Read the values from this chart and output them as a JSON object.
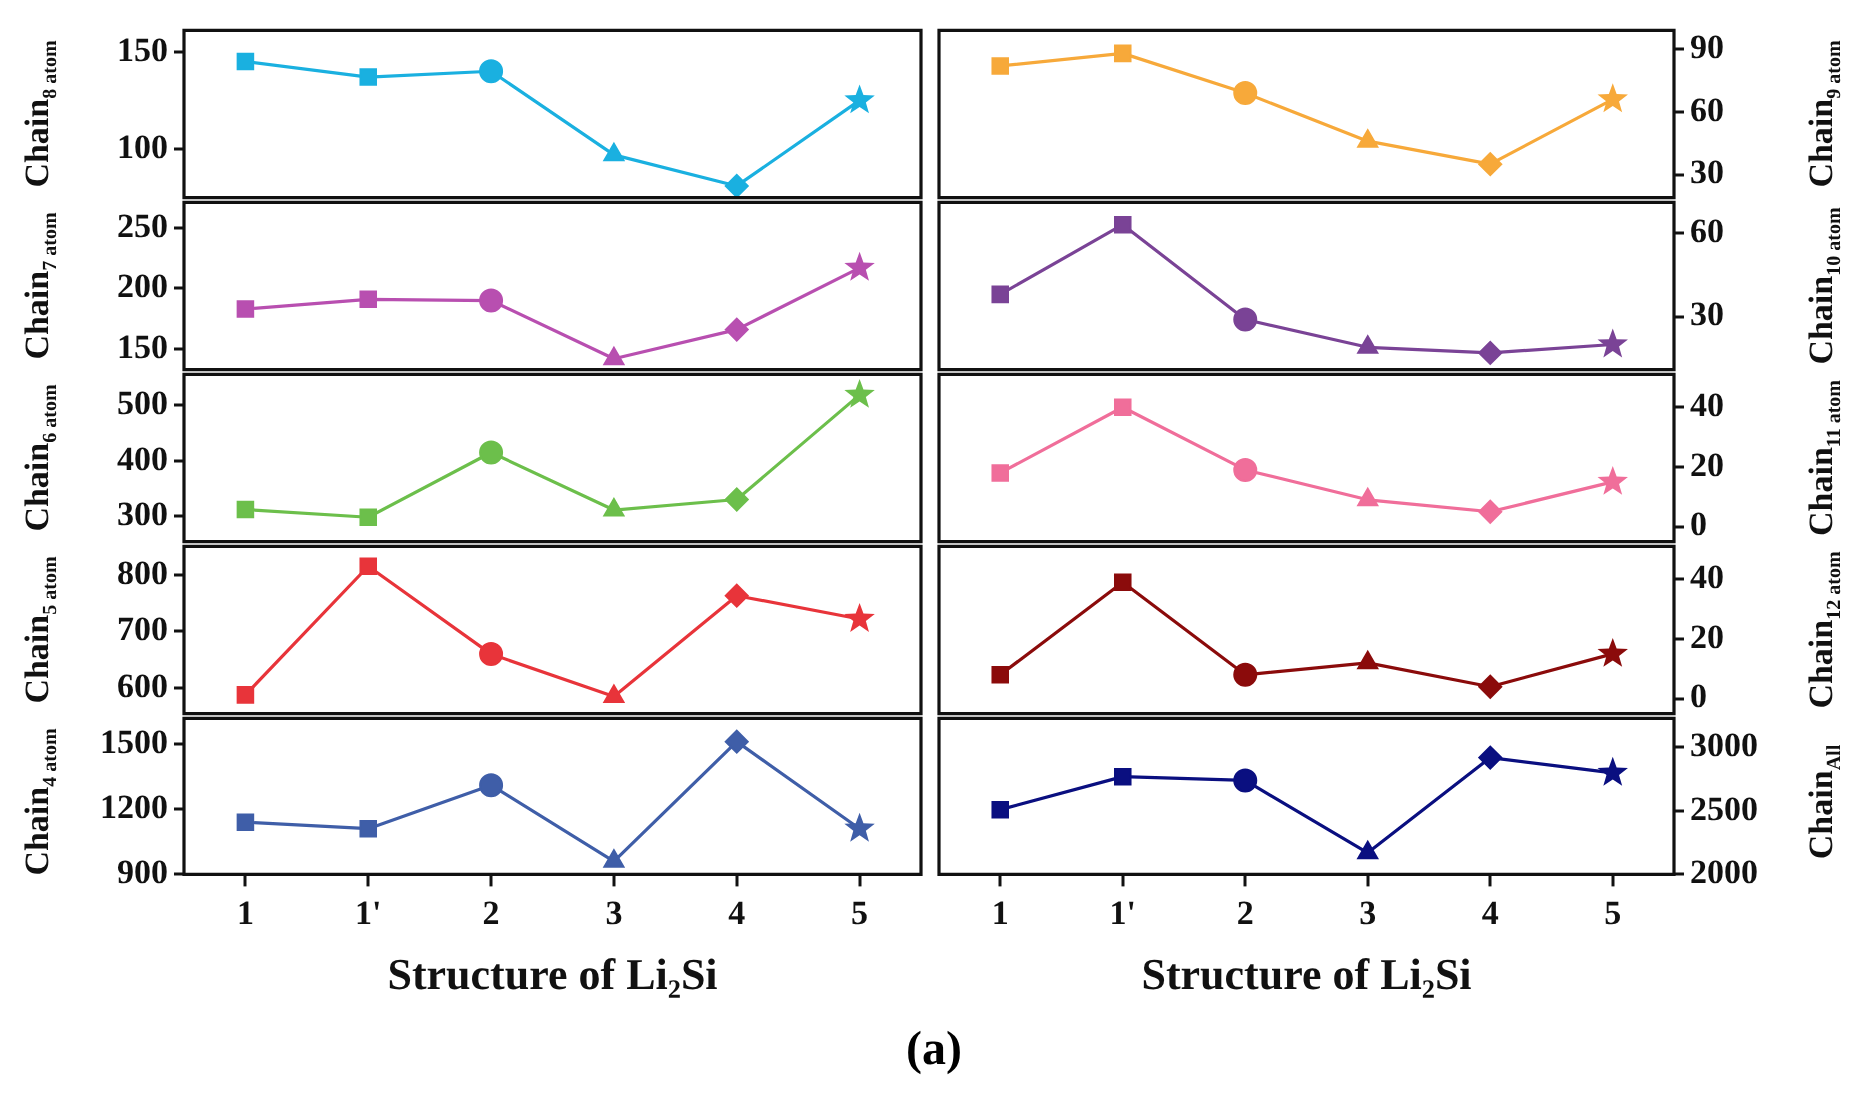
{
  "chart_data": [
    {
      "type": "line",
      "ylabel": "Chain$_{8 atom}$",
      "categories": [
        "1",
        "1'",
        "2",
        "3",
        "4",
        "5"
      ],
      "ylim": [
        75,
        161
      ],
      "yticks": [
        100,
        150
      ],
      "grid": false,
      "legend": false,
      "tick_labels": "y",
      "series": [
        {
          "color": "#1ab0e0",
          "marker": "none",
          "values": [
            145,
            137,
            140,
            97,
            81,
            125
          ]
        },
        {
          "type": "scatter",
          "color": "#1ab0e0",
          "marker": "square",
          "x": [
            "1"
          ],
          "values": [
            145
          ]
        },
        {
          "type": "scatter",
          "color": "#1ab0e0",
          "marker": "square",
          "x": [
            "1'"
          ],
          "values": [
            137
          ]
        },
        {
          "type": "scatter",
          "color": "#1ab0e0",
          "marker": "circle",
          "x": [
            "2"
          ],
          "values": [
            140
          ]
        },
        {
          "type": "scatter",
          "color": "#1ab0e0",
          "marker": "triangle",
          "x": [
            "3"
          ],
          "values": [
            97
          ]
        },
        {
          "type": "scatter",
          "color": "#1ab0e0",
          "marker": "diamond",
          "x": [
            "4"
          ],
          "values": [
            81
          ]
        },
        {
          "type": "scatter",
          "color": "#1ab0e0",
          "marker": "star",
          "x": [
            "5"
          ],
          "values": [
            125
          ]
        }
      ]
    },
    {
      "type": "line",
      "ylabel": "Chain$_{9 atom}$",
      "categories": [
        "1",
        "1'",
        "2",
        "3",
        "4",
        "5"
      ],
      "ylim": [
        19,
        99
      ],
      "yticks": [
        30,
        60,
        90
      ],
      "grid": false,
      "legend": false,
      "tick_labels": "y",
      "series": [
        {
          "color": "#f7a93a",
          "marker": "none",
          "values": [
            82,
            88,
            69,
            46,
            35,
            66
          ]
        },
        {
          "type": "scatter",
          "color": "#f7a93a",
          "marker": "square",
          "x": [
            "1"
          ],
          "values": [
            82
          ]
        },
        {
          "type": "scatter",
          "color": "#f7a93a",
          "marker": "square",
          "x": [
            "1'"
          ],
          "values": [
            88
          ]
        },
        {
          "type": "scatter",
          "color": "#f7a93a",
          "marker": "circle",
          "x": [
            "2"
          ],
          "values": [
            69
          ]
        },
        {
          "type": "scatter",
          "color": "#f7a93a",
          "marker": "triangle",
          "x": [
            "3"
          ],
          "values": [
            46
          ]
        },
        {
          "type": "scatter",
          "color": "#f7a93a",
          "marker": "diamond",
          "x": [
            "4"
          ],
          "values": [
            35
          ]
        },
        {
          "type": "scatter",
          "color": "#f7a93a",
          "marker": "star",
          "x": [
            "5"
          ],
          "values": [
            66
          ]
        }
      ]
    },
    {
      "type": "line",
      "ylabel": "Chain$_{7 atom}$",
      "categories": [
        "1",
        "1'",
        "2",
        "3",
        "4",
        "5"
      ],
      "ylim": [
        133,
        271
      ],
      "yticks": [
        150,
        200,
        250
      ],
      "grid": false,
      "legend": false,
      "tick_labels": "y",
      "series": [
        {
          "color": "#b84fb0",
          "marker": "none",
          "values": [
            183,
            191,
            190,
            142,
            166,
            217
          ]
        },
        {
          "type": "scatter",
          "color": "#b84fb0",
          "marker": "square",
          "x": [
            "1"
          ],
          "values": [
            183
          ]
        },
        {
          "type": "scatter",
          "color": "#b84fb0",
          "marker": "square",
          "x": [
            "1'"
          ],
          "values": [
            191
          ]
        },
        {
          "type": "scatter",
          "color": "#b84fb0",
          "marker": "circle",
          "x": [
            "2"
          ],
          "values": [
            190
          ]
        },
        {
          "type": "scatter",
          "color": "#b84fb0",
          "marker": "triangle",
          "x": [
            "3"
          ],
          "values": [
            142
          ]
        },
        {
          "type": "scatter",
          "color": "#b84fb0",
          "marker": "diamond",
          "x": [
            "4"
          ],
          "values": [
            166
          ]
        },
        {
          "type": "scatter",
          "color": "#b84fb0",
          "marker": "star",
          "x": [
            "5"
          ],
          "values": [
            217
          ]
        }
      ]
    },
    {
      "type": "line",
      "ylabel": "Chain$_{10 atom}$",
      "categories": [
        "1",
        "1'",
        "2",
        "3",
        "4",
        "5"
      ],
      "ylim": [
        11,
        71
      ],
      "yticks": [
        30,
        60
      ],
      "grid": false,
      "legend": false,
      "tick_labels": "y",
      "series": [
        {
          "color": "#7a4396",
          "marker": "none",
          "values": [
            38,
            63,
            29,
            19,
            17,
            20
          ]
        },
        {
          "type": "scatter",
          "color": "#7a4396",
          "marker": "square",
          "x": [
            "1"
          ],
          "values": [
            38
          ]
        },
        {
          "type": "scatter",
          "color": "#7a4396",
          "marker": "square",
          "x": [
            "1'"
          ],
          "values": [
            63
          ]
        },
        {
          "type": "scatter",
          "color": "#7a4396",
          "marker": "circle",
          "x": [
            "2"
          ],
          "values": [
            29
          ]
        },
        {
          "type": "scatter",
          "color": "#7a4396",
          "marker": "triangle",
          "x": [
            "3"
          ],
          "values": [
            19
          ]
        },
        {
          "type": "scatter",
          "color": "#7a4396",
          "marker": "diamond",
          "x": [
            "4"
          ],
          "values": [
            17
          ]
        },
        {
          "type": "scatter",
          "color": "#7a4396",
          "marker": "star",
          "x": [
            "5"
          ],
          "values": [
            20
          ]
        }
      ]
    },
    {
      "type": "line",
      "ylabel": "Chain$_{6 atom}$",
      "categories": [
        "1",
        "1'",
        "2",
        "3",
        "4",
        "5"
      ],
      "ylim": [
        254,
        556
      ],
      "yticks": [
        300,
        400,
        500
      ],
      "grid": false,
      "legend": false,
      "tick_labels": "y",
      "series": [
        {
          "color": "#6cbf4b",
          "marker": "none",
          "values": [
            312,
            298,
            415,
            311,
            330,
            519
          ]
        },
        {
          "type": "scatter",
          "color": "#6cbf4b",
          "marker": "square",
          "x": [
            "1"
          ],
          "values": [
            312
          ]
        },
        {
          "type": "scatter",
          "color": "#6cbf4b",
          "marker": "square",
          "x": [
            "1'"
          ],
          "values": [
            298
          ]
        },
        {
          "type": "scatter",
          "color": "#6cbf4b",
          "marker": "circle",
          "x": [
            "2"
          ],
          "values": [
            415
          ]
        },
        {
          "type": "scatter",
          "color": "#6cbf4b",
          "marker": "triangle",
          "x": [
            "3"
          ],
          "values": [
            311
          ]
        },
        {
          "type": "scatter",
          "color": "#6cbf4b",
          "marker": "diamond",
          "x": [
            "4"
          ],
          "values": [
            330
          ]
        },
        {
          "type": "scatter",
          "color": "#6cbf4b",
          "marker": "star",
          "x": [
            "5"
          ],
          "values": [
            519
          ]
        }
      ]
    },
    {
      "type": "line",
      "ylabel": "Chain$_{11 atom}$",
      "categories": [
        "1",
        "1'",
        "2",
        "3",
        "4",
        "5"
      ],
      "ylim": [
        -5,
        51
      ],
      "yticks": [
        0,
        20,
        40
      ],
      "grid": false,
      "legend": false,
      "tick_labels": "y",
      "series": [
        {
          "color": "#f06e9a",
          "marker": "none",
          "values": [
            18,
            40,
            19,
            9,
            5,
            15
          ]
        },
        {
          "type": "scatter",
          "color": "#f06e9a",
          "marker": "square",
          "x": [
            "1"
          ],
          "values": [
            18
          ]
        },
        {
          "type": "scatter",
          "color": "#f06e9a",
          "marker": "square",
          "x": [
            "1'"
          ],
          "values": [
            40
          ]
        },
        {
          "type": "scatter",
          "color": "#f06e9a",
          "marker": "circle",
          "x": [
            "2"
          ],
          "values": [
            19
          ]
        },
        {
          "type": "scatter",
          "color": "#f06e9a",
          "marker": "triangle",
          "x": [
            "3"
          ],
          "values": [
            9
          ]
        },
        {
          "type": "scatter",
          "color": "#f06e9a",
          "marker": "diamond",
          "x": [
            "4"
          ],
          "values": [
            5
          ]
        },
        {
          "type": "scatter",
          "color": "#f06e9a",
          "marker": "star",
          "x": [
            "5"
          ],
          "values": [
            15
          ]
        }
      ]
    },
    {
      "type": "line",
      "ylabel": "Chain$_{5 atom}$",
      "categories": [
        "1",
        "1'",
        "2",
        "3",
        "4",
        "5"
      ],
      "ylim": [
        555,
        850
      ],
      "yticks": [
        600,
        700,
        800
      ],
      "grid": false,
      "legend": false,
      "tick_labels": "y",
      "series": [
        {
          "color": "#e8343a",
          "marker": "none",
          "values": [
            588,
            815,
            660,
            585,
            763,
            722
          ]
        },
        {
          "type": "scatter",
          "color": "#e8343a",
          "marker": "square",
          "x": [
            "1"
          ],
          "values": [
            588
          ]
        },
        {
          "type": "scatter",
          "color": "#e8343a",
          "marker": "square",
          "x": [
            "1'"
          ],
          "values": [
            815
          ]
        },
        {
          "type": "scatter",
          "color": "#e8343a",
          "marker": "circle",
          "x": [
            "2"
          ],
          "values": [
            660
          ]
        },
        {
          "type": "scatter",
          "color": "#e8343a",
          "marker": "triangle",
          "x": [
            "3"
          ],
          "values": [
            585
          ]
        },
        {
          "type": "scatter",
          "color": "#e8343a",
          "marker": "diamond",
          "x": [
            "4"
          ],
          "values": [
            763
          ]
        },
        {
          "type": "scatter",
          "color": "#e8343a",
          "marker": "star",
          "x": [
            "5"
          ],
          "values": [
            722
          ]
        }
      ]
    },
    {
      "type": "line",
      "ylabel": "Chain$_{12 atom}$",
      "categories": [
        "1",
        "1'",
        "2",
        "3",
        "4",
        "5"
      ],
      "ylim": [
        -5,
        51
      ],
      "yticks": [
        0,
        20,
        40
      ],
      "grid": false,
      "legend": false,
      "tick_labels": "y",
      "series": [
        {
          "color": "#8b0b0b",
          "marker": "none",
          "values": [
            8,
            39,
            8,
            12,
            4,
            15
          ]
        },
        {
          "type": "scatter",
          "color": "#8b0b0b",
          "marker": "square",
          "x": [
            "1"
          ],
          "values": [
            8
          ]
        },
        {
          "type": "scatter",
          "color": "#8b0b0b",
          "marker": "square",
          "x": [
            "1'"
          ],
          "values": [
            39
          ]
        },
        {
          "type": "scatter",
          "color": "#8b0b0b",
          "marker": "circle",
          "x": [
            "2"
          ],
          "values": [
            8
          ]
        },
        {
          "type": "scatter",
          "color": "#8b0b0b",
          "marker": "triangle",
          "x": [
            "3"
          ],
          "values": [
            12
          ]
        },
        {
          "type": "scatter",
          "color": "#8b0b0b",
          "marker": "diamond",
          "x": [
            "4"
          ],
          "values": [
            4
          ]
        },
        {
          "type": "scatter",
          "color": "#8b0b0b",
          "marker": "star",
          "x": [
            "5"
          ],
          "values": [
            15
          ]
        }
      ]
    },
    {
      "type": "line",
      "xlabel": "Structure of Li₂Si",
      "ylabel": "Chain$_{4 atom}$",
      "annotations": [
        "(a)"
      ],
      "categories": [
        "1",
        "1'",
        "2",
        "3",
        "4",
        "5"
      ],
      "ylim": [
        900,
        1617
      ],
      "yticks": [
        900,
        1200,
        1500
      ],
      "grid": false,
      "legend": false,
      "series": [
        {
          "color": "#3f5ea8",
          "marker": "none",
          "values": [
            1140,
            1110,
            1310,
            960,
            1510,
            1110
          ]
        },
        {
          "type": "scatter",
          "color": "#3f5ea8",
          "marker": "square",
          "x": [
            "1"
          ],
          "values": [
            1140
          ]
        },
        {
          "type": "scatter",
          "color": "#3f5ea8",
          "marker": "square",
          "x": [
            "1'"
          ],
          "values": [
            1110
          ]
        },
        {
          "type": "scatter",
          "color": "#3f5ea8",
          "marker": "circle",
          "x": [
            "2"
          ],
          "values": [
            1310
          ]
        },
        {
          "type": "scatter",
          "color": "#3f5ea8",
          "marker": "triangle",
          "x": [
            "3"
          ],
          "values": [
            960
          ]
        },
        {
          "type": "scatter",
          "color": "#3f5ea8",
          "marker": "diamond",
          "x": [
            "4"
          ],
          "values": [
            1510
          ]
        },
        {
          "type": "scatter",
          "color": "#3f5ea8",
          "marker": "star",
          "x": [
            "5"
          ],
          "values": [
            1110
          ]
        }
      ]
    },
    {
      "type": "line",
      "xlabel": "Structure of Li₂Si",
      "ylabel": "Chain$_{All}$",
      "categories": [
        "1",
        "1'",
        "2",
        "3",
        "4",
        "5"
      ],
      "ylim": [
        2000,
        3229
      ],
      "yticks": [
        2000,
        2500,
        3000
      ],
      "grid": false,
      "legend": false,
      "series": [
        {
          "color": "#0a0f80",
          "marker": "none",
          "values": [
            2510,
            2770,
            2740,
            2170,
            2920,
            2800
          ]
        },
        {
          "type": "scatter",
          "color": "#0a0f80",
          "marker": "square",
          "x": [
            "1"
          ],
          "values": [
            2510
          ]
        },
        {
          "type": "scatter",
          "color": "#0a0f80",
          "marker": "square",
          "x": [
            "1'"
          ],
          "values": [
            2770
          ]
        },
        {
          "type": "scatter",
          "color": "#0a0f80",
          "marker": "circle",
          "x": [
            "2"
          ],
          "values": [
            2740
          ]
        },
        {
          "type": "scatter",
          "color": "#0a0f80",
          "marker": "triangle",
          "x": [
            "3"
          ],
          "values": [
            2170
          ]
        },
        {
          "type": "scatter",
          "color": "#0a0f80",
          "marker": "diamond",
          "x": [
            "4"
          ],
          "values": [
            2920
          ]
        },
        {
          "type": "scatter",
          "color": "#0a0f80",
          "marker": "star",
          "x": [
            "5"
          ],
          "values": [
            2800
          ]
        }
      ]
    }
  ]
}
